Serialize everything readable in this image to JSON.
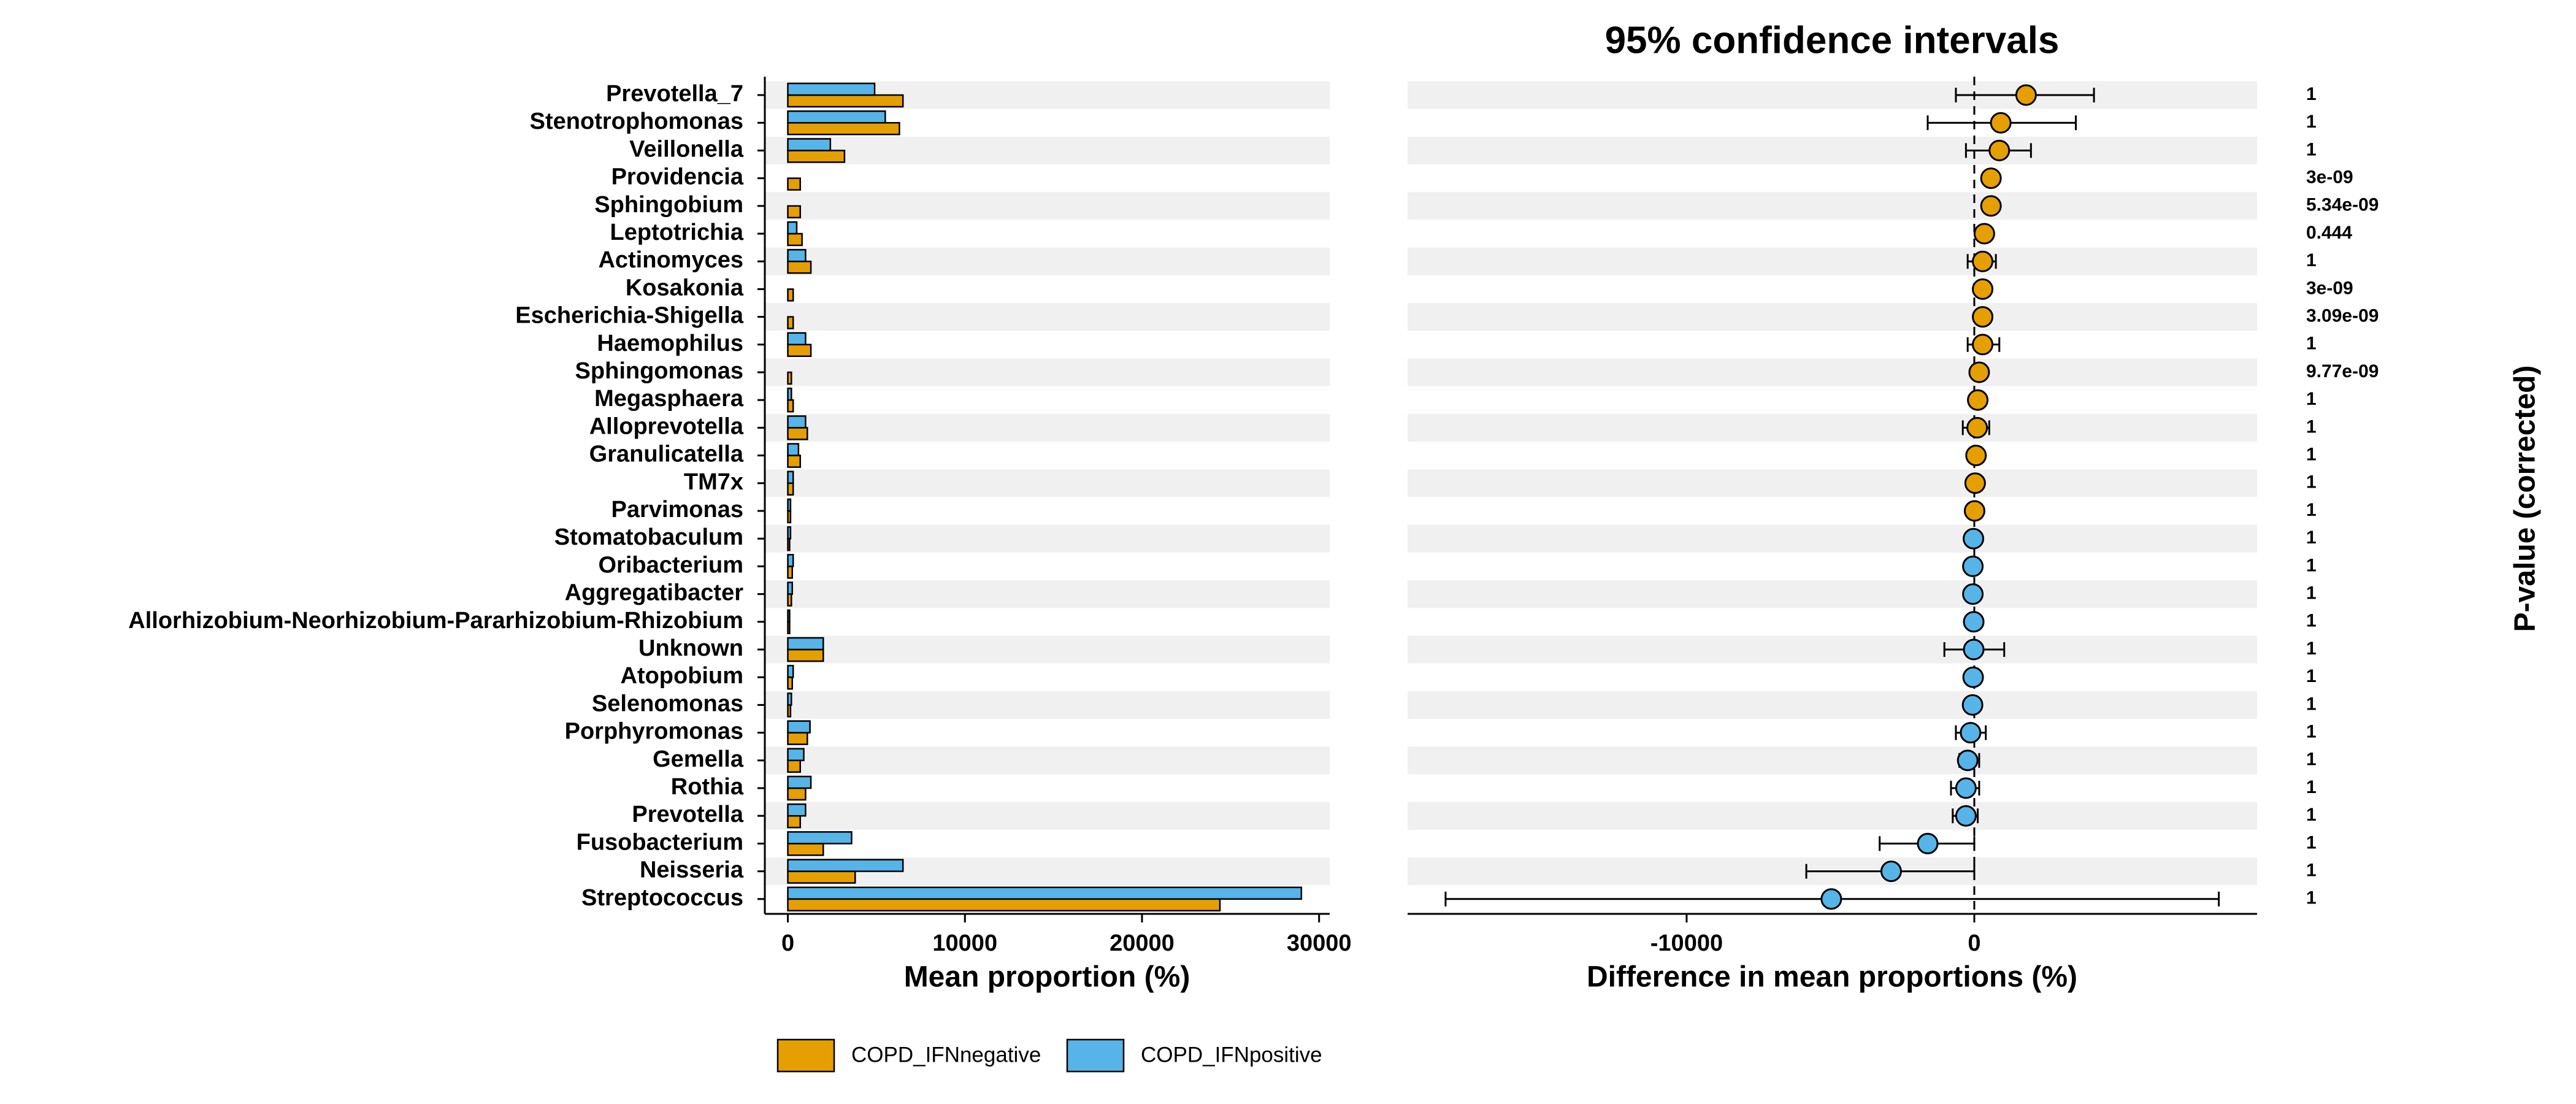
{
  "chart_data": [
    {
      "type": "hbar",
      "xlabel": "Mean proportion (%)",
      "categories": [
        "Prevotella_7",
        "Stenotrophomonas",
        "Veillonella",
        "Providencia",
        "Sphingobium",
        "Leptotrichia",
        "Actinomyces",
        "Kosakonia",
        "Escherichia-Shigella",
        "Haemophilus",
        "Sphingomonas",
        "Megasphaera",
        "Alloprevotella",
        "Granulicatella",
        "TM7x",
        "Parvimonas",
        "Stomatobaculum",
        "Oribacterium",
        "Aggregatibacter",
        "Allorhizobium-Neorhizobium-Pararhizobium-Rhizobium",
        "Unknown",
        "Atopobium",
        "Selenomonas",
        "Porphyromonas",
        "Gemella",
        "Rothia",
        "Prevotella",
        "Fusobacterium",
        "Neisseria",
        "Streptococcus"
      ],
      "series": [
        {
          "name": "COPD_IFNnegative",
          "color": "#E69F00",
          "values": [
            6500,
            6300,
            3200,
            700,
            700,
            800,
            1300,
            300,
            300,
            1300,
            200,
            300,
            1100,
            700,
            300,
            150,
            100,
            250,
            200,
            100,
            2000,
            250,
            150,
            1100,
            700,
            1000,
            700,
            2000,
            3800,
            24400
          ]
        },
        {
          "name": "COPD_IFNpositive",
          "color": "#56B4E9",
          "values": [
            4900,
            5500,
            2400,
            0,
            0,
            500,
            1000,
            0,
            0,
            1000,
            0,
            200,
            1000,
            600,
            300,
            150,
            150,
            300,
            250,
            100,
            2000,
            300,
            200,
            1250,
            900,
            1300,
            1000,
            3600,
            6500,
            29000
          ]
        }
      ],
      "xlim": [
        -1300,
        30600
      ],
      "xticks": [
        0,
        10000,
        20000,
        30000
      ]
    },
    {
      "type": "ci",
      "title": "95% confidence intervals",
      "xlabel": "Difference in mean proportions (%)",
      "values": [
        1800,
        920,
        870,
        580,
        580,
        350,
        290,
        290,
        290,
        290,
        170,
        120,
        100,
        60,
        30,
        10,
        -30,
        -50,
        -50,
        -20,
        -20,
        -40,
        -60,
        -130,
        -230,
        -290,
        -290,
        -1620,
        -2890,
        -4970
      ],
      "ci_lower": [
        -640,
        -1620,
        -290,
        550,
        550,
        320,
        -230,
        260,
        260,
        -230,
        140,
        90,
        -400,
        30,
        0,
        -20,
        -60,
        -80,
        -80,
        -50,
        -1040,
        -70,
        -90,
        -640,
        -520,
        -810,
        -750,
        -3290,
        -5840,
        -18380
      ],
      "ci_upper": [
        4160,
        3530,
        1970,
        610,
        610,
        380,
        750,
        320,
        320,
        870,
        200,
        150,
        520,
        90,
        60,
        40,
        0,
        -20,
        -20,
        10,
        1040,
        -10,
        -30,
        400,
        170,
        170,
        120,
        0,
        0,
        8500
      ],
      "xlim": [
        -19700,
        9830
      ],
      "xticks": [
        -10000,
        0
      ],
      "p_value_title": "P-value (corrected)",
      "p_values": [
        "1",
        "1",
        "1",
        "3e-09",
        "5.34e-09",
        "0.444",
        "1",
        "3e-09",
        "3.09e-09",
        "1",
        "9.77e-09",
        "1",
        "1",
        "1",
        "1",
        "1",
        "1",
        "1",
        "1",
        "1",
        "1",
        "1",
        "1",
        "1",
        "1",
        "1",
        "1",
        "1",
        "1",
        "1"
      ]
    }
  ]
}
